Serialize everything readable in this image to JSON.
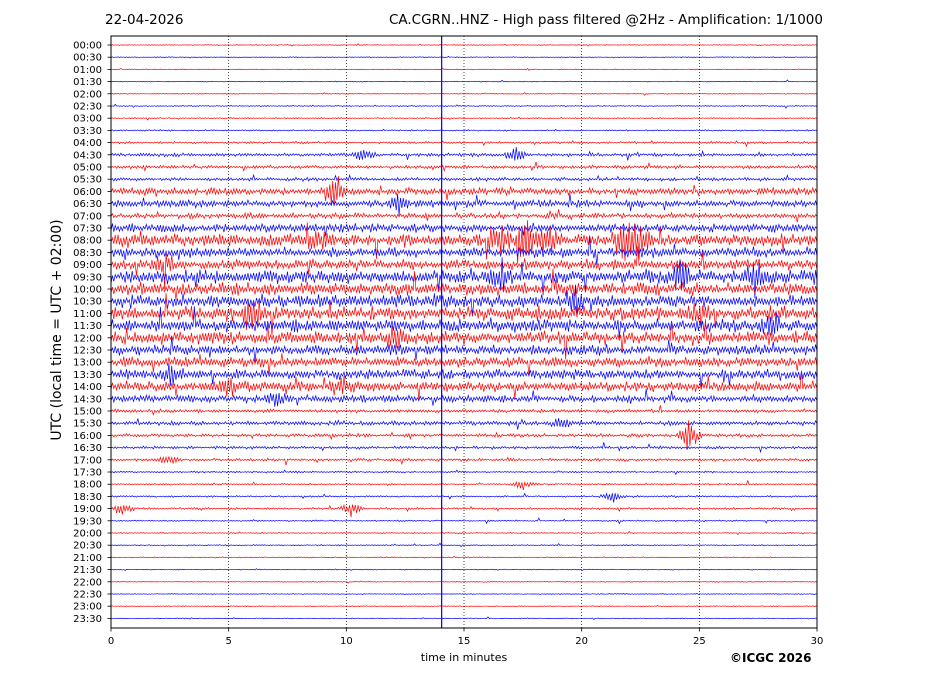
{
  "header": {
    "date": "22-04-2026",
    "title": "CA.CGRN..HNZ - High pass filtered @2Hz - Amplification: 1/1000"
  },
  "footer": {
    "copyright": "©ICGC 2026"
  },
  "colors": {
    "odd_trace": "#ff0000",
    "even_trace": "#0000ff",
    "marker_line": "#0000ff",
    "axes": "#000000"
  },
  "chart_data": {
    "type": "line",
    "title": "CA.CGRN..HNZ - High pass filtered @2Hz - Amplification: 1/1000",
    "xlabel": "time in minutes",
    "ylabel": "UTC (local time = UTC + 02:00)",
    "xlim": [
      0,
      30
    ],
    "x_ticks": [
      "0",
      "5",
      "10",
      "15",
      "20",
      "25",
      "30"
    ],
    "vertical_dotted_grid_at": [
      5,
      10,
      15,
      20,
      25
    ],
    "vertical_marker_line_at": 14.05,
    "rows": [
      "00:00",
      "00:30",
      "01:00",
      "01:30",
      "02:00",
      "02:30",
      "03:00",
      "03:30",
      "04:00",
      "04:30",
      "05:00",
      "05:30",
      "06:00",
      "06:30",
      "07:00",
      "07:30",
      "08:00",
      "08:30",
      "09:00",
      "09:30",
      "10:00",
      "10:30",
      "11:00",
      "11:30",
      "12:00",
      "12:30",
      "13:00",
      "13:30",
      "14:00",
      "14:30",
      "15:00",
      "15:30",
      "16:00",
      "16:30",
      "17:00",
      "17:30",
      "18:00",
      "18:30",
      "19:00",
      "19:30",
      "20:00",
      "20:30",
      "21:00",
      "21:30",
      "22:00",
      "22:30",
      "23:00",
      "23:30"
    ],
    "trace_colors_alternate": [
      "red",
      "blue"
    ],
    "activity_level_per_row": [
      0.03,
      0.03,
      0.03,
      0.03,
      0.03,
      0.04,
      0.04,
      0.05,
      0.08,
      0.12,
      0.12,
      0.12,
      0.25,
      0.25,
      0.18,
      0.3,
      0.45,
      0.35,
      0.35,
      0.45,
      0.45,
      0.45,
      0.5,
      0.45,
      0.45,
      0.35,
      0.35,
      0.35,
      0.35,
      0.25,
      0.12,
      0.15,
      0.12,
      0.1,
      0.1,
      0.06,
      0.06,
      0.06,
      0.07,
      0.05,
      0.04,
      0.04,
      0.04,
      0.03,
      0.03,
      0.03,
      0.03,
      0.03
    ],
    "bursts": [
      {
        "row": "04:30",
        "x": 10.7,
        "amp": 0.7
      },
      {
        "row": "04:30",
        "x": 17.2,
        "amp": 0.8
      },
      {
        "row": "06:00",
        "x": 9.5,
        "amp": 1.6
      },
      {
        "row": "06:30",
        "x": 12.2,
        "amp": 0.8
      },
      {
        "row": "08:00",
        "x": 16.5,
        "amp": 1.6
      },
      {
        "row": "08:00",
        "x": 17.7,
        "amp": 1.9
      },
      {
        "row": "08:00",
        "x": 18.6,
        "amp": 1.6
      },
      {
        "row": "08:00",
        "x": 21.8,
        "amp": 1.7
      },
      {
        "row": "08:00",
        "x": 22.4,
        "amp": 1.6
      },
      {
        "row": "08:00",
        "x": 8.8,
        "amp": 0.9
      },
      {
        "row": "09:00",
        "x": 2.3,
        "amp": 0.9
      },
      {
        "row": "09:30",
        "x": 16.6,
        "amp": 1.2
      },
      {
        "row": "09:30",
        "x": 24.2,
        "amp": 1.6
      },
      {
        "row": "09:30",
        "x": 27.4,
        "amp": 1.4
      },
      {
        "row": "10:30",
        "x": 19.7,
        "amp": 1.3
      },
      {
        "row": "11:00",
        "x": 6.0,
        "amp": 1.6
      },
      {
        "row": "11:00",
        "x": 25.0,
        "amp": 1.0
      },
      {
        "row": "11:30",
        "x": 28.0,
        "amp": 0.9
      },
      {
        "row": "12:00",
        "x": 12.0,
        "amp": 1.0
      },
      {
        "row": "13:30",
        "x": 2.6,
        "amp": 0.9
      },
      {
        "row": "14:00",
        "x": 5.0,
        "amp": 0.8
      },
      {
        "row": "14:00",
        "x": 9.8,
        "amp": 0.8
      },
      {
        "row": "14:30",
        "x": 7.0,
        "amp": 0.7
      },
      {
        "row": "15:30",
        "x": 19.2,
        "amp": 0.6
      },
      {
        "row": "16:00",
        "x": 24.6,
        "amp": 1.4
      },
      {
        "row": "17:00",
        "x": 2.4,
        "amp": 0.5
      },
      {
        "row": "18:00",
        "x": 17.5,
        "amp": 0.5
      },
      {
        "row": "18:30",
        "x": 21.3,
        "amp": 0.6
      },
      {
        "row": "19:00",
        "x": 10.2,
        "amp": 0.7
      },
      {
        "row": "19:00",
        "x": 0.5,
        "amp": 0.5
      }
    ]
  }
}
